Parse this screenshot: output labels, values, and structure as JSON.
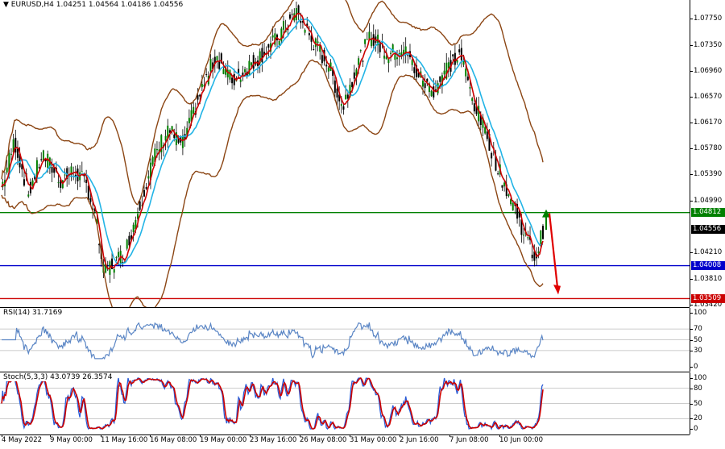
{
  "main": {
    "symbol": "EURUSD,H4",
    "ohlc": "1.04251 1.04564 1.04186 1.04556",
    "price_labels": [
      "1.07750",
      "1.07350",
      "1.06960",
      "1.06570",
      "1.06170",
      "1.05780",
      "1.05390",
      "1.04990",
      "1.04210",
      "1.03810",
      "1.03420"
    ],
    "price_levels": [
      1.0775,
      1.0735,
      1.0696,
      1.0657,
      1.0617,
      1.0578,
      1.0539,
      1.0499,
      1.0421,
      1.0381,
      1.0342
    ],
    "hlines": [
      {
        "label": "1.04812",
        "value": 1.04812,
        "color": "#008000"
      },
      {
        "label": "1.04008",
        "value": 1.04008,
        "color": "#0000cc"
      },
      {
        "label": "1.03509",
        "value": 1.03509,
        "color": "#cc0000"
      }
    ],
    "current_price": {
      "label": "1.04556",
      "value": 1.04556,
      "color": "#000000"
    },
    "range": [
      1.0338,
      1.0803
    ]
  },
  "rsi": {
    "title": "RSI(14) 31.7169",
    "labels": [
      "100",
      "70",
      "50",
      "30",
      "0"
    ],
    "levels": [
      100,
      70,
      50,
      30,
      0
    ],
    "color": "#5b86c5"
  },
  "stoch": {
    "title": "Stoch(5,3,3) 43.0739 26.3574",
    "labels": [
      "100",
      "80",
      "50",
      "20",
      "0"
    ],
    "levels": [
      100,
      80,
      50,
      20,
      0
    ],
    "main_color": "#2b5cd6",
    "signal_color": "#cc0000"
  },
  "time_labels": [
    "4 May 2022",
    "9 May 00:00",
    "11 May 16:00",
    "16 May 08:00",
    "19 May 00:00",
    "23 May 16:00",
    "26 May 08:00",
    "31 May 00:00",
    "2 Jun 16:00",
    "7 Jun 08:00",
    "10 Jun 00:00"
  ],
  "colors": {
    "candle_up": "#008000",
    "candle_down": "#000000",
    "bollinger": "#8b4513",
    "ma_fast": "#cc0000",
    "ma_slow": "#22b4e6"
  }
}
